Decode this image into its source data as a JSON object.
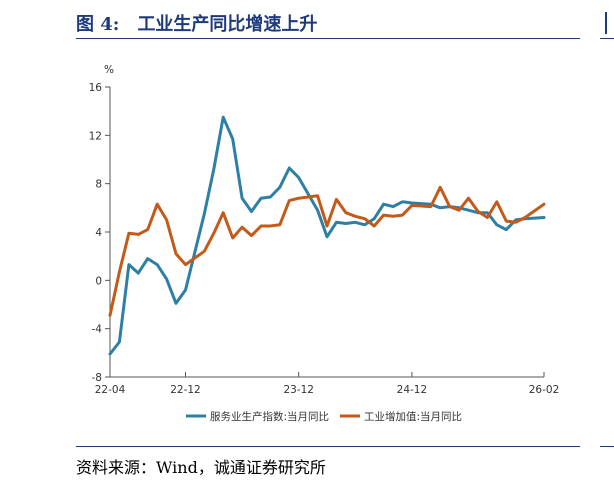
{
  "figure": {
    "number": "图 4:",
    "title": "工业生产同比增速上升",
    "source": "资料来源：Wind，诚通证券研究所"
  },
  "chart_data": {
    "type": "line",
    "ylabel": "%",
    "ylim": [
      -8,
      16
    ],
    "yticks": [
      -8,
      -4,
      0,
      4,
      8,
      12,
      16
    ],
    "xlim": [
      0,
      46
    ],
    "xticks": [
      {
        "index": 0,
        "label": "22-04"
      },
      {
        "index": 8,
        "label": "22-12"
      },
      {
        "index": 20,
        "label": "23-12"
      },
      {
        "index": 32,
        "label": "24-12"
      },
      {
        "index": 46,
        "label": "26-02"
      }
    ],
    "x": [
      "22-04",
      "22-05",
      "22-06",
      "22-07",
      "22-08",
      "22-09",
      "22-10",
      "22-11",
      "22-12",
      "23-01",
      "23-02",
      "23-03",
      "23-04",
      "23-05",
      "23-06",
      "23-07",
      "23-08",
      "23-09",
      "23-10",
      "23-11",
      "23-12",
      "24-01",
      "24-02",
      "24-03",
      "24-04",
      "24-05",
      "24-06",
      "24-07",
      "24-08",
      "24-09",
      "24-10",
      "24-11",
      "24-12",
      "25-01",
      "25-02",
      "25-03",
      "25-04",
      "25-05",
      "25-06",
      "25-07",
      "25-08",
      "25-09",
      "25-10",
      "25-11",
      "25-12",
      "26-01",
      "26-02"
    ],
    "legend_position": "bottom",
    "grid": false,
    "series": [
      {
        "name": "服务业生产指数:当月同比",
        "color": "#2e7fa6",
        "values": [
          -6.1,
          -5.1,
          1.3,
          0.6,
          1.8,
          1.3,
          0.1,
          -1.9,
          -0.8,
          null,
          5.5,
          9.2,
          13.5,
          11.7,
          6.8,
          5.7,
          6.8,
          6.9,
          7.7,
          9.3,
          8.5,
          null,
          5.8,
          3.6,
          4.8,
          4.7,
          4.8,
          4.6,
          5.1,
          6.3,
          6.1,
          6.5,
          6.4,
          null,
          6.3,
          6.0,
          6.1,
          6.0,
          5.8,
          5.6,
          5.6,
          4.6,
          4.2,
          5.0,
          5.1,
          null,
          5.2
        ]
      },
      {
        "name": "工业增加值:当月同比",
        "color": "#c45a1a",
        "values": [
          -2.9,
          0.7,
          3.9,
          3.8,
          4.2,
          6.3,
          5.0,
          2.2,
          1.3,
          null,
          2.4,
          3.9,
          5.6,
          3.5,
          4.4,
          3.7,
          4.5,
          4.5,
          4.6,
          6.6,
          6.8,
          null,
          7.0,
          4.5,
          6.7,
          5.6,
          5.3,
          5.1,
          4.5,
          5.4,
          5.3,
          5.4,
          6.2,
          null,
          6.1,
          7.7,
          6.1,
          5.8,
          6.8,
          5.7,
          5.2,
          6.5,
          4.9,
          4.8,
          5.2,
          null,
          6.3
        ]
      }
    ]
  }
}
